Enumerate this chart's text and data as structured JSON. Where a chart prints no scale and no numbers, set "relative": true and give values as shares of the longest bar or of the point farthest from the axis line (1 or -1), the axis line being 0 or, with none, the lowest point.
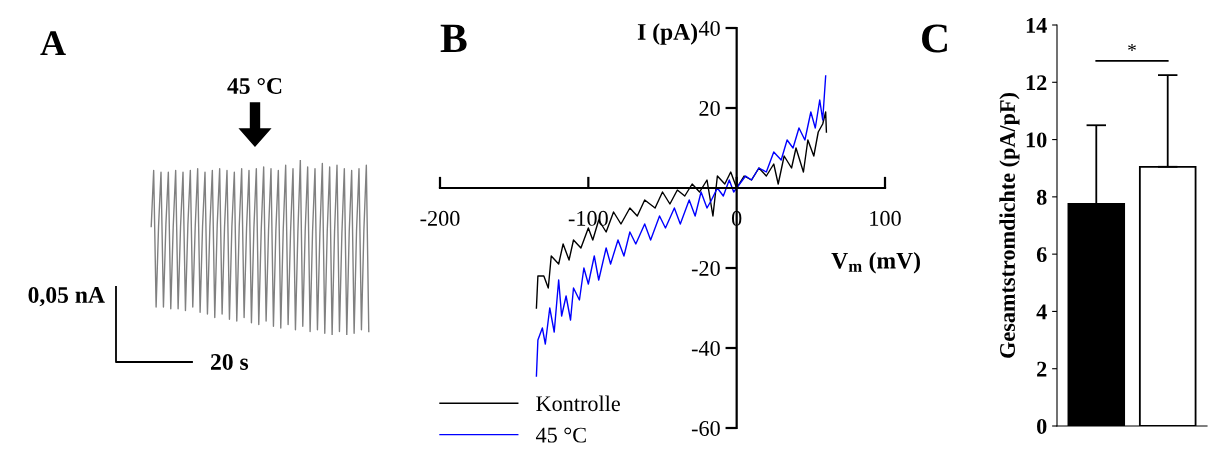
{
  "chart_data": [
    {
      "type": "line",
      "title": "A",
      "relative": true,
      "color": "#808080",
      "categories": [
        null,
        null,
        null,
        null,
        null,
        null,
        null,
        null,
        null,
        null,
        null,
        null,
        null,
        null,
        null,
        null,
        null,
        null,
        null,
        null,
        null,
        null,
        null,
        null,
        null,
        null,
        null,
        null,
        null,
        null,
        null,
        null,
        null,
        null,
        null,
        null,
        null,
        null,
        null,
        null,
        null,
        null,
        null,
        null,
        null,
        null,
        null,
        null,
        null,
        null,
        null,
        null,
        null,
        null,
        null,
        null,
        null,
        null,
        null,
        null,
        null,
        null,
        null,
        null,
        null,
        null,
        null,
        null,
        null,
        null,
        null,
        null,
        null,
        null,
        null,
        null,
        null,
        null,
        null,
        null,
        null,
        null,
        null,
        null,
        null,
        null,
        null,
        null,
        null,
        null
      ],
      "values": [
        0.62,
        0.94,
        0.16,
        0.62,
        0.93,
        0.16,
        0.63,
        0.93,
        0.15,
        0.62,
        0.94,
        0.15,
        0.62,
        0.93,
        0.14,
        0.63,
        0.94,
        0.16,
        0.62,
        0.95,
        0.13,
        0.62,
        0.93,
        0.12,
        0.62,
        0.94,
        0.1,
        0.63,
        0.95,
        0.12,
        0.62,
        0.94,
        0.09,
        0.62,
        0.93,
        0.08,
        0.62,
        0.95,
        0.1,
        0.61,
        0.94,
        0.07,
        0.61,
        0.95,
        0.06,
        0.6,
        0.96,
        0.08,
        0.6,
        0.95,
        0.05,
        0.6,
        0.94,
        0.04,
        0.6,
        0.97,
        0.06,
        0.59,
        0.95,
        0.03,
        0.59,
        1.0,
        0.05,
        0.6,
        0.96,
        0.02,
        0.59,
        0.95,
        0.03,
        0.58,
        0.98,
        0.01,
        0.59,
        0.96,
        0.0,
        0.59,
        0.97,
        0.02,
        0.58,
        0.95,
        0.0,
        0.59,
        0.94,
        0.01,
        0.6,
        0.95,
        0.03,
        0.6,
        0.97,
        0.02
      ],
      "annotations": [
        "45 °C",
        "0,05 nA",
        "20 s"
      ]
    },
    {
      "type": "line",
      "title": "B",
      "xlabel": "V$_{m}$ (mV)",
      "ylabel": "I (pA)",
      "xlim": [
        -200,
        100
      ],
      "ylim": [
        -60,
        40
      ],
      "xticks": [
        -200,
        -100,
        0,
        100
      ],
      "yticks": [
        -60,
        -40,
        -20,
        20,
        40
      ],
      "grid": false,
      "legend": "bottom left",
      "series": [
        {
          "name": "Kontrolle",
          "color": "#000000",
          "x": [
            -135,
            -134,
            -130,
            -127,
            -125,
            -120,
            -117,
            -113,
            -110,
            -105,
            -100,
            -97,
            -93,
            -88,
            -83,
            -78,
            -72,
            -67,
            -62,
            -55,
            -50,
            -45,
            -40,
            -35,
            -30,
            -25,
            -20,
            -16,
            -13,
            -8,
            -4,
            0,
            5,
            10,
            15,
            20,
            25,
            28,
            32,
            37,
            40,
            45,
            48,
            52,
            55,
            58,
            60,
            60.5
          ],
          "values": [
            -30,
            -22,
            -22,
            -25,
            -17,
            -19,
            -14,
            -18,
            -13,
            -15,
            -10,
            -13,
            -8,
            -11,
            -6,
            -9,
            -5,
            -7,
            -3,
            -5,
            -1,
            -4,
            -0.5,
            -2,
            1,
            -1,
            2,
            -7,
            3,
            1,
            4,
            0,
            3,
            2,
            5,
            3,
            6,
            1,
            8,
            5,
            10,
            4,
            12,
            8,
            14,
            16,
            19,
            14
          ]
        },
        {
          "name": "45 °C",
          "color": "#0000ff",
          "x": [
            -135,
            -134,
            -131,
            -129,
            -126,
            -123,
            -120,
            -118,
            -115,
            -112,
            -110,
            -106,
            -103,
            -100,
            -96,
            -93,
            -88,
            -85,
            -80,
            -76,
            -72,
            -68,
            -62,
            -58,
            -52,
            -48,
            -42,
            -38,
            -32,
            -28,
            -24,
            -20,
            -17,
            -13,
            -9,
            -5,
            -2,
            2,
            6,
            10,
            15,
            20,
            25,
            30,
            34,
            38,
            42,
            46,
            50,
            53,
            56,
            58,
            60
          ],
          "values": [
            -47,
            -38,
            -35,
            -39,
            -30,
            -36,
            -23,
            -32,
            -27,
            -33,
            -25,
            -28,
            -20,
            -24,
            -17,
            -23,
            -15,
            -19,
            -13,
            -17,
            -11,
            -14,
            -9,
            -13,
            -7,
            -10,
            -5,
            -9,
            -3,
            -7,
            -1,
            -5,
            -3,
            0,
            -2,
            2,
            -1,
            1,
            3,
            2,
            5,
            4,
            9,
            7,
            12,
            10,
            15,
            12,
            19,
            15,
            22,
            17,
            28
          ]
        }
      ]
    },
    {
      "type": "bar",
      "title": "C",
      "ylabel": "Gesamtstromdichte (pA/pF)",
      "categories": [
        null,
        null
      ],
      "values": [
        7.75,
        9.05
      ],
      "colors": [
        "#000000",
        "#ffffff"
      ],
      "errors": [
        [
          7.75,
          10.5
        ],
        [
          9.05,
          12.25
        ]
      ],
      "ylim": [
        0,
        14
      ],
      "yticks": [
        0,
        2,
        4,
        6,
        8,
        10,
        12,
        14
      ],
      "grid": false,
      "annotations": [
        "*"
      ]
    }
  ]
}
